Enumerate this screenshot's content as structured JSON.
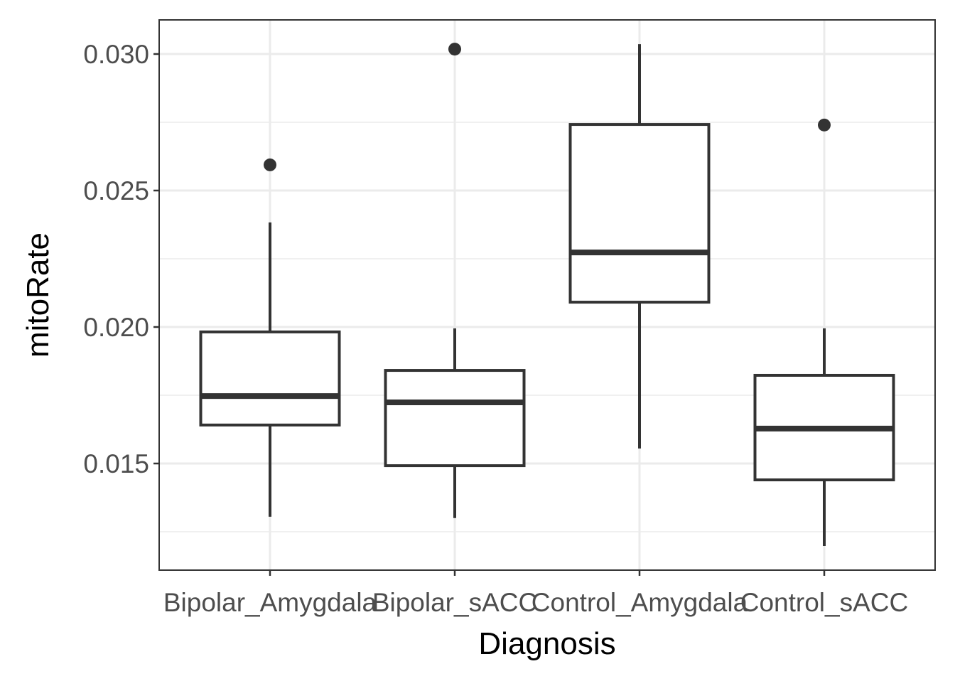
{
  "chart_data": {
    "type": "boxplot",
    "title": "",
    "xlabel": "Diagnosis",
    "ylabel": "mitoRate",
    "categories": [
      "Bipolar_Amygdala",
      "Bipolar_sACC",
      "Control_Amygdala",
      "Control_sACC"
    ],
    "boxes": [
      {
        "lower_whisker": 0.01305,
        "q1": 0.01641,
        "median": 0.01747,
        "q3": 0.01982,
        "upper_whisker": 0.02383,
        "outliers": [
          0.02594
        ]
      },
      {
        "lower_whisker": 0.013,
        "q1": 0.01492,
        "median": 0.01724,
        "q3": 0.01841,
        "upper_whisker": 0.01995,
        "outliers": [
          0.03018
        ]
      },
      {
        "lower_whisker": 0.01555,
        "q1": 0.02091,
        "median": 0.02273,
        "q3": 0.02742,
        "upper_whisker": 0.03036,
        "outliers": []
      },
      {
        "lower_whisker": 0.01198,
        "q1": 0.0144,
        "median": 0.01628,
        "q3": 0.01823,
        "upper_whisker": 0.01995,
        "outliers": [
          0.0274
        ]
      }
    ],
    "yticks": [
      0.015,
      0.02,
      0.025,
      0.03
    ],
    "ytick_labels": [
      "0.015",
      "0.020",
      "0.025",
      "0.030"
    ],
    "ylim": [
      0.011094,
      0.03125
    ],
    "grid": true,
    "colors": {
      "box": "#333333",
      "grid": "#ebebeb",
      "panel_border": "#333333",
      "fill": "#ffffff"
    }
  }
}
